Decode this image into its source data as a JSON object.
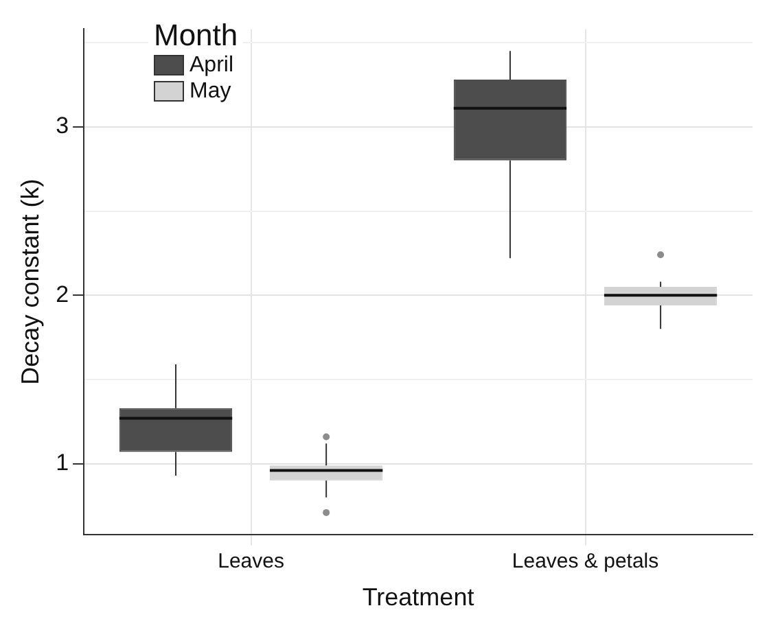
{
  "chart_data": {
    "type": "box",
    "xlabel": "Treatment",
    "ylabel": "Decay constant (k)",
    "legend_title": "Month",
    "categories": [
      "Leaves",
      "Leaves & petals"
    ],
    "series": [
      {
        "name": "April",
        "color": "#4d4d4d",
        "boxes": [
          {
            "low": 0.93,
            "q1": 1.07,
            "median": 1.27,
            "q3": 1.33,
            "high": 1.59
          },
          {
            "low": 2.22,
            "q1": 2.8,
            "median": 3.11,
            "q3": 3.28,
            "high": 3.45
          }
        ]
      },
      {
        "name": "May",
        "color": "#d3d3d3",
        "boxes": [
          {
            "low": 0.8,
            "q1": 0.9,
            "median": 0.96,
            "q3": 0.99,
            "high": 1.12,
            "outliers": [
              1.16,
              0.71
            ]
          },
          {
            "low": 1.8,
            "q1": 1.94,
            "median": 2.0,
            "q3": 2.05,
            "high": 2.08,
            "outliers": [
              2.24
            ]
          }
        ]
      }
    ],
    "ylim": [
      0.58,
      3.58
    ],
    "yticks": [
      1,
      {
        "value": 1.5,
        "label": null
      },
      2,
      {
        "value": 2.5,
        "label": null
      },
      3,
      {
        "value": 3.5,
        "label": null
      }
    ],
    "grid": true,
    "legend": "top left"
  }
}
